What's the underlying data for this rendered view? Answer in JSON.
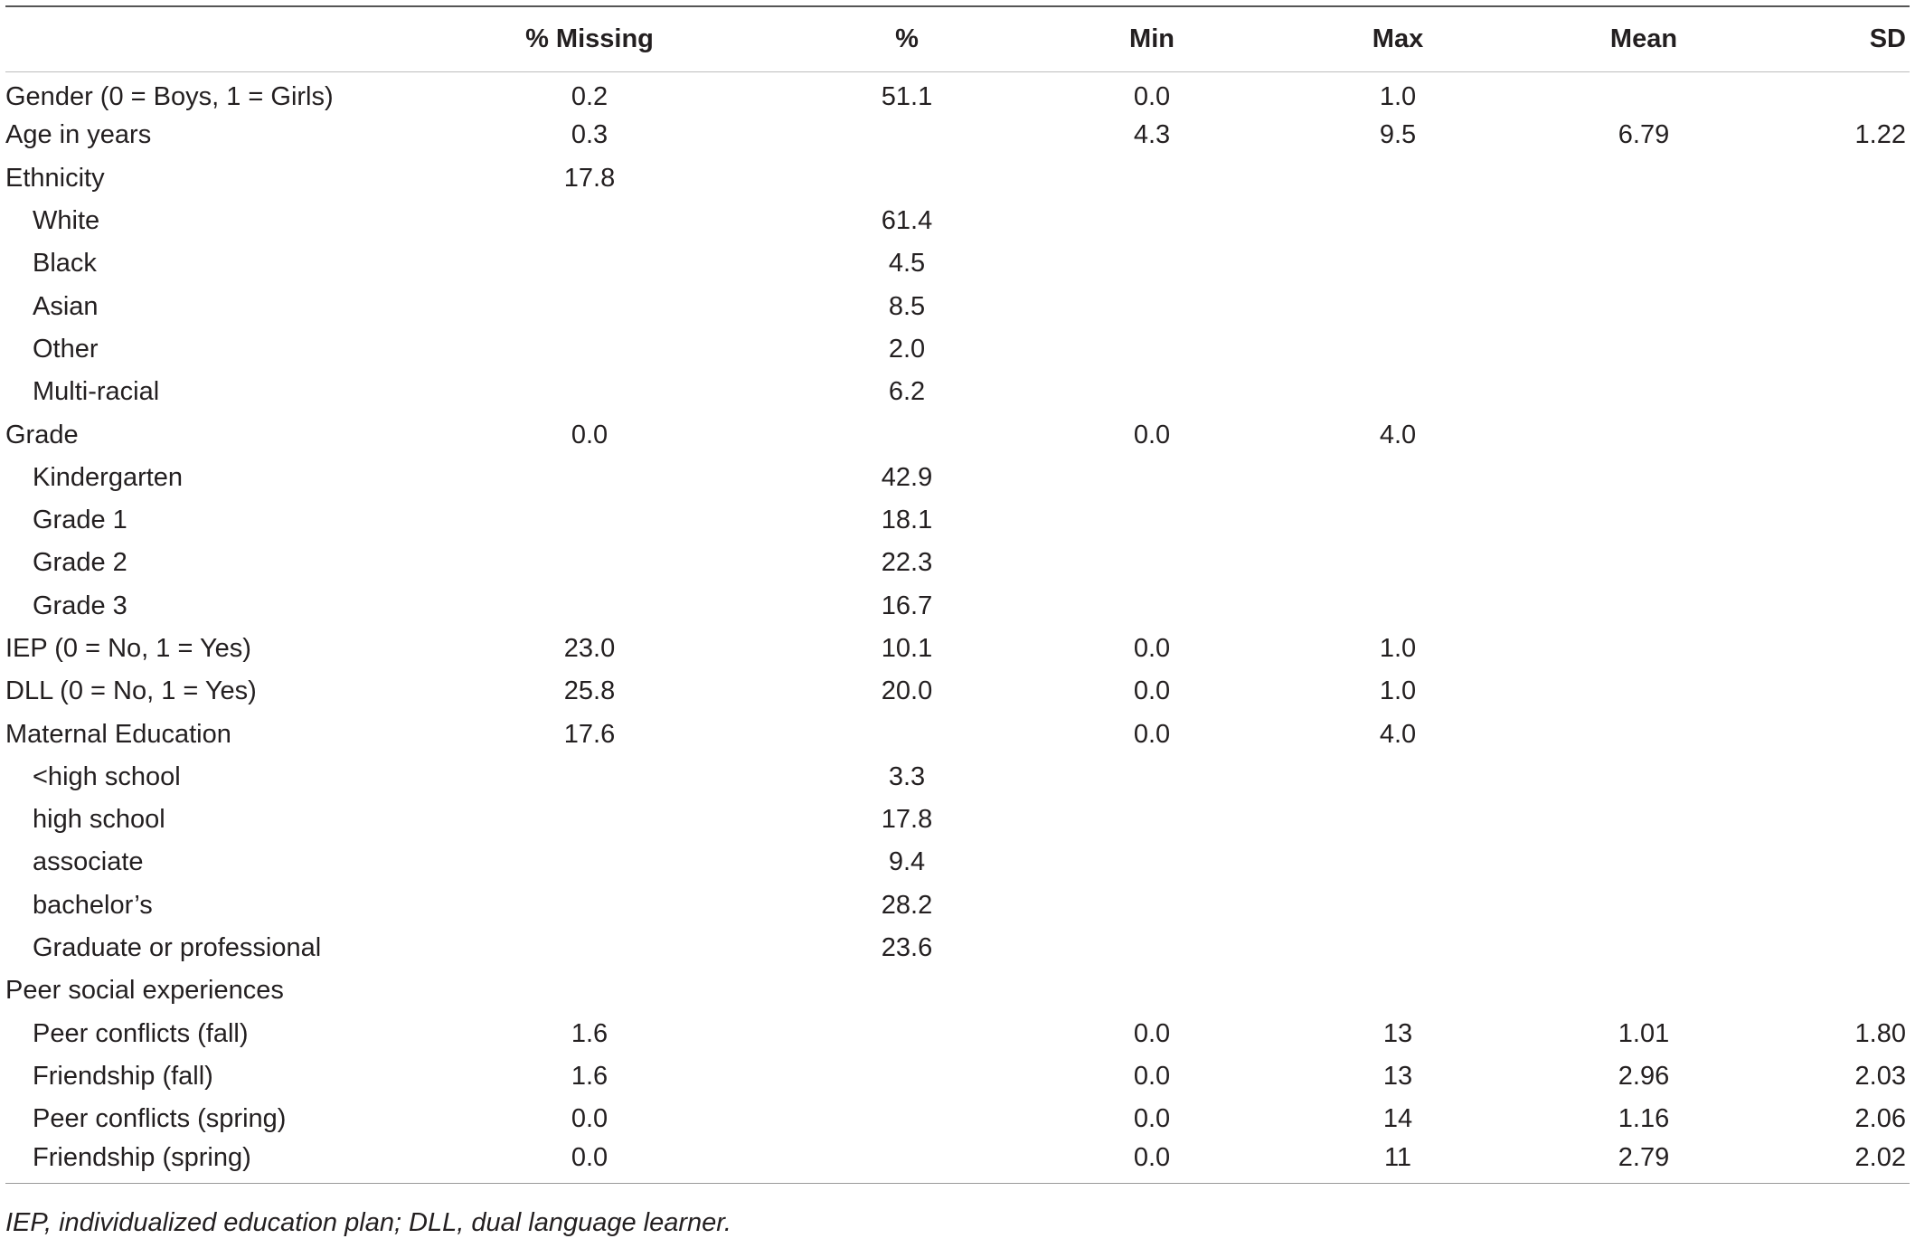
{
  "table": {
    "headers": [
      "",
      "% Missing",
      "%",
      "Min",
      "Max",
      "Mean",
      "SD"
    ],
    "rows": [
      {
        "label": "Gender (0 = Boys, 1 = Girls)",
        "missing": "0.2",
        "pct": "51.1",
        "min": "0.0",
        "max": "1.0",
        "mean": "",
        "sd": "",
        "sub": false
      },
      {
        "label": "Age in years",
        "missing": "0.3",
        "pct": "",
        "min": "4.3",
        "max": "9.5",
        "mean": "6.79",
        "sd": "1.22",
        "sub": false
      },
      {
        "label": "Ethnicity",
        "missing": "17.8",
        "pct": "",
        "min": "",
        "max": "",
        "mean": "",
        "sd": "",
        "sub": false
      },
      {
        "label": "White",
        "missing": "",
        "pct": "61.4",
        "min": "",
        "max": "",
        "mean": "",
        "sd": "",
        "sub": true
      },
      {
        "label": "Black",
        "missing": "",
        "pct": "4.5",
        "min": "",
        "max": "",
        "mean": "",
        "sd": "",
        "sub": true
      },
      {
        "label": "Asian",
        "missing": "",
        "pct": "8.5",
        "min": "",
        "max": "",
        "mean": "",
        "sd": "",
        "sub": true
      },
      {
        "label": "Other",
        "missing": "",
        "pct": "2.0",
        "min": "",
        "max": "",
        "mean": "",
        "sd": "",
        "sub": true
      },
      {
        "label": "Multi-racial",
        "missing": "",
        "pct": "6.2",
        "min": "",
        "max": "",
        "mean": "",
        "sd": "",
        "sub": true
      },
      {
        "label": "Grade",
        "missing": "0.0",
        "pct": "",
        "min": "0.0",
        "max": "4.0",
        "mean": "",
        "sd": "",
        "sub": false
      },
      {
        "label": "Kindergarten",
        "missing": "",
        "pct": "42.9",
        "min": "",
        "max": "",
        "mean": "",
        "sd": "",
        "sub": true
      },
      {
        "label": "Grade 1",
        "missing": "",
        "pct": "18.1",
        "min": "",
        "max": "",
        "mean": "",
        "sd": "",
        "sub": true
      },
      {
        "label": "Grade 2",
        "missing": "",
        "pct": "22.3",
        "min": "",
        "max": "",
        "mean": "",
        "sd": "",
        "sub": true
      },
      {
        "label": "Grade 3",
        "missing": "",
        "pct": "16.7",
        "min": "",
        "max": "",
        "mean": "",
        "sd": "",
        "sub": true
      },
      {
        "label": "IEP (0 = No, 1 = Yes)",
        "missing": "23.0",
        "pct": "10.1",
        "min": "0.0",
        "max": "1.0",
        "mean": "",
        "sd": "",
        "sub": false
      },
      {
        "label": "DLL (0 = No, 1 = Yes)",
        "missing": "25.8",
        "pct": "20.0",
        "min": "0.0",
        "max": "1.0",
        "mean": "",
        "sd": "",
        "sub": false
      },
      {
        "label": "Maternal Education",
        "missing": "17.6",
        "pct": "",
        "min": "0.0",
        "max": "4.0",
        "mean": "",
        "sd": "",
        "sub": false
      },
      {
        "label": "<high school",
        "missing": "",
        "pct": "3.3",
        "min": "",
        "max": "",
        "mean": "",
        "sd": "",
        "sub": true
      },
      {
        "label": "high school",
        "missing": "",
        "pct": "17.8",
        "min": "",
        "max": "",
        "mean": "",
        "sd": "",
        "sub": true
      },
      {
        "label": "associate",
        "missing": "",
        "pct": "9.4",
        "min": "",
        "max": "",
        "mean": "",
        "sd": "",
        "sub": true
      },
      {
        "label": "bachelor’s",
        "missing": "",
        "pct": "28.2",
        "min": "",
        "max": "",
        "mean": "",
        "sd": "",
        "sub": true
      },
      {
        "label": "Graduate or professional",
        "missing": "",
        "pct": "23.6",
        "min": "",
        "max": "",
        "mean": "",
        "sd": "",
        "sub": true
      },
      {
        "label": "Peer social experiences",
        "missing": "",
        "pct": "",
        "min": "",
        "max": "",
        "mean": "",
        "sd": "",
        "sub": false
      },
      {
        "label": "Peer conflicts (fall)",
        "missing": "1.6",
        "pct": "",
        "min": "0.0",
        "max": "13",
        "mean": "1.01",
        "sd": "1.80",
        "sub": true
      },
      {
        "label": "Friendship (fall)",
        "missing": "1.6",
        "pct": "",
        "min": "0.0",
        "max": "13",
        "mean": "2.96",
        "sd": "2.03",
        "sub": true
      },
      {
        "label": "Peer conflicts (spring)",
        "missing": "0.0",
        "pct": "",
        "min": "0.0",
        "max": "14",
        "mean": "1.16",
        "sd": "2.06",
        "sub": true
      },
      {
        "label": "Friendship (spring)",
        "missing": "0.0",
        "pct": "",
        "min": "0.0",
        "max": "11",
        "mean": "2.79",
        "sd": "2.02",
        "sub": true
      }
    ]
  },
  "footnote": "IEP, individualized education plan; DLL, dual language learner."
}
